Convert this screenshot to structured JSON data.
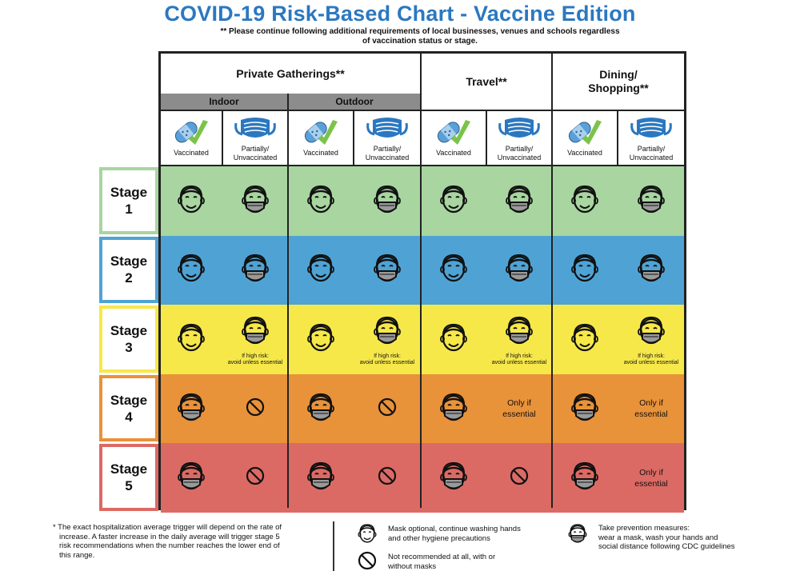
{
  "title": "COVID-19 Risk-Based Chart - Vaccine Edition",
  "subtitle_line1": "** Please continue following additional requirements of local businesses, venues and schools regardless",
  "subtitle_line2": "of vaccination status or stage.",
  "groups": {
    "private": "Private Gatherings**",
    "travel": "Travel**",
    "dining_line1": "Dining/",
    "dining_line2": "Shopping**"
  },
  "subgroups": {
    "indoor": "Indoor",
    "outdoor": "Outdoor"
  },
  "columns": [
    {
      "type": "vaccinated",
      "l1": "Vaccinated",
      "l2": ""
    },
    {
      "type": "partial",
      "l1": "Partially/",
      "l2": "Unvaccinated"
    },
    {
      "type": "vaccinated",
      "l1": "Vaccinated",
      "l2": ""
    },
    {
      "type": "partial",
      "l1": "Partially/",
      "l2": "Unvaccinated"
    },
    {
      "type": "vaccinated",
      "l1": "Vaccinated",
      "l2": ""
    },
    {
      "type": "partial",
      "l1": "Partially/",
      "l2": "Unvaccinated"
    },
    {
      "type": "vaccinated",
      "l1": "Vaccinated",
      "l2": ""
    },
    {
      "type": "partial",
      "l1": "Partially/",
      "l2": "Unvaccinated"
    }
  ],
  "stages": [
    {
      "word": "Stage",
      "num": "1",
      "color": "#a8d5a0",
      "border": "#a8d5a0",
      "cells": [
        {
          "icon": "smile"
        },
        {
          "icon": "mask"
        },
        {
          "icon": "smile"
        },
        {
          "icon": "mask"
        },
        {
          "icon": "smile"
        },
        {
          "icon": "mask"
        },
        {
          "icon": "smile"
        },
        {
          "icon": "mask"
        }
      ]
    },
    {
      "word": "Stage",
      "num": "2",
      "color": "#4fa3d4",
      "border": "#4fa3d4",
      "cells": [
        {
          "icon": "smile"
        },
        {
          "icon": "mask"
        },
        {
          "icon": "smile"
        },
        {
          "icon": "mask"
        },
        {
          "icon": "smile"
        },
        {
          "icon": "mask"
        },
        {
          "icon": "smile"
        },
        {
          "icon": "mask"
        }
      ]
    },
    {
      "word": "Stage",
      "num": "3",
      "color": "#f7e84a",
      "border": "#f7e84a",
      "cells": [
        {
          "icon": "smile"
        },
        {
          "icon": "mask",
          "n1": "If high risk:",
          "n2": "avoid unless essential"
        },
        {
          "icon": "smile"
        },
        {
          "icon": "mask",
          "n1": "If high risk:",
          "n2": "avoid unless essential"
        },
        {
          "icon": "smile"
        },
        {
          "icon": "mask",
          "n1": "If high risk:",
          "n2": "avoid unless essential"
        },
        {
          "icon": "smile"
        },
        {
          "icon": "mask",
          "n1": "If high risk:",
          "n2": "avoid unless essential"
        }
      ]
    },
    {
      "word": "Stage",
      "num": "4",
      "color": "#e8923a",
      "border": "#e8923a",
      "cells": [
        {
          "icon": "mask"
        },
        {
          "icon": "no"
        },
        {
          "icon": "mask"
        },
        {
          "icon": "no"
        },
        {
          "icon": "mask"
        },
        {
          "icon": "text",
          "t1": "Only if",
          "t2": "essential"
        },
        {
          "icon": "mask"
        },
        {
          "icon": "text",
          "t1": "Only if",
          "t2": "essential"
        }
      ]
    },
    {
      "word": "Stage",
      "num": "5",
      "color": "#dc6a64",
      "border": "#dc6a64",
      "cells": [
        {
          "icon": "mask"
        },
        {
          "icon": "no"
        },
        {
          "icon": "mask"
        },
        {
          "icon": "no"
        },
        {
          "icon": "mask"
        },
        {
          "icon": "no"
        },
        {
          "icon": "mask"
        },
        {
          "icon": "text",
          "t1": "Only if",
          "t2": "essential"
        }
      ]
    }
  ],
  "footnote_line1": "* The exact hospitalization average trigger will depend on the rate of",
  "footnote_line2": "increase. A faster increase in the daily average will trigger stage 5",
  "footnote_line3": "risk recommendations when the number reaches the lower end of",
  "footnote_line4": "this range.",
  "legend": {
    "smile_l1": "Mask optional, continue washing hands",
    "smile_l2": "and other hygiene precautions",
    "no_l1": "Not recommended at all, with or",
    "no_l2": "without masks",
    "mask_l1": "Take prevention measures:",
    "mask_l2": "wear a mask, wash your hands and",
    "mask_l3": "social distance following CDC guidelines"
  }
}
